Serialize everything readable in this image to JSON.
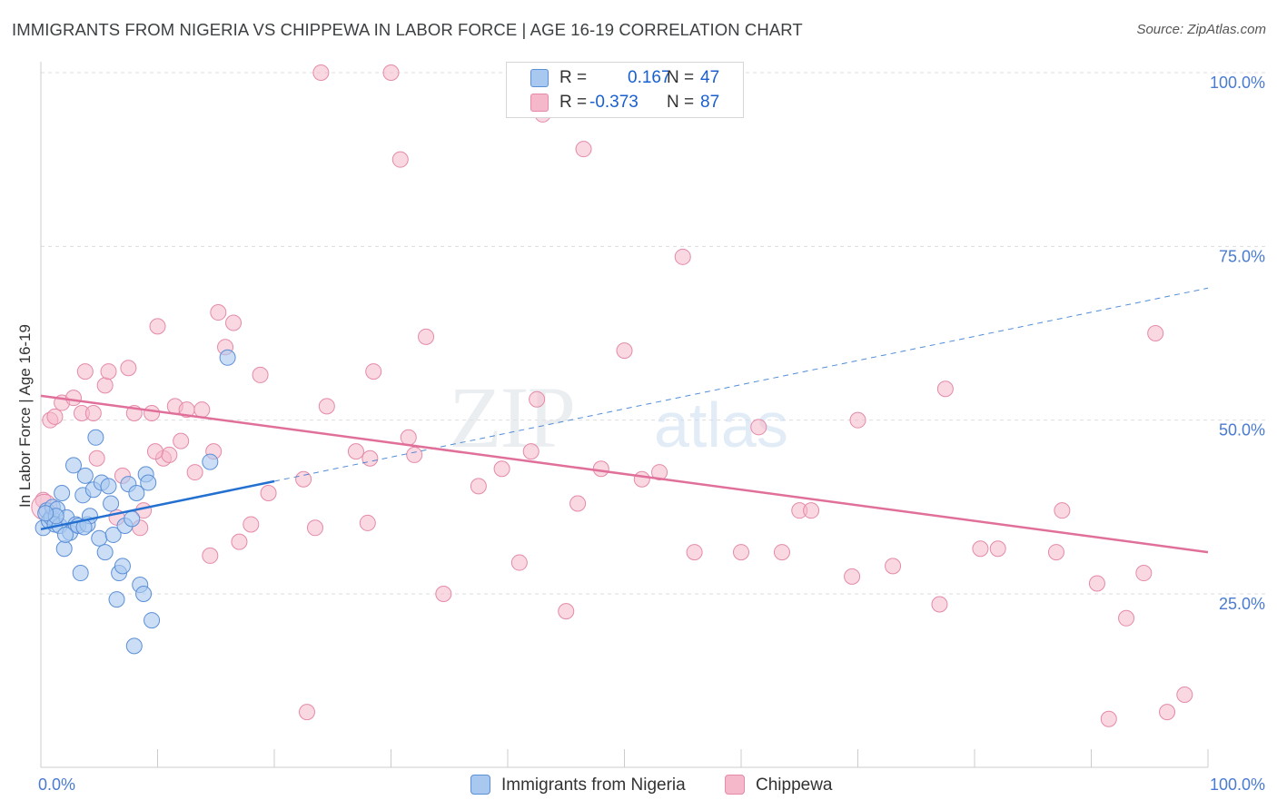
{
  "title": "IMMIGRANTS FROM NIGERIA VS CHIPPEWA IN LABOR FORCE | AGE 16-19 CORRELATION CHART",
  "source": "Source: ZipAtlas.com",
  "watermark": {
    "zip": "ZIP",
    "atlas": "atlas"
  },
  "colors": {
    "series1_fill": "#a8c8f0",
    "series1_stroke": "#5b8fd6",
    "series1_line": "#2470d0",
    "series2_fill": "#f5b8cb",
    "series2_stroke": "#e48aa8",
    "series2_line": "#e0709a",
    "axis_text": "#4a7bd0",
    "grid": "#dddddd"
  },
  "stats": {
    "r_label": "R =",
    "n_label": "N =",
    "rows": [
      {
        "r": "0.167",
        "n": "47"
      },
      {
        "r": "-0.373",
        "n": "87"
      }
    ]
  },
  "legend": [
    {
      "label": "Immigrants from Nigeria"
    },
    {
      "label": "Chippewa"
    }
  ],
  "chart_data": {
    "type": "scatter",
    "title": "IMMIGRANTS FROM NIGERIA VS CHIPPEWA IN LABOR FORCE | AGE 16-19 CORRELATION CHART",
    "xlabel": "",
    "ylabel": "In Labor Force | Age 16-19",
    "xlim": [
      0,
      100
    ],
    "ylim": [
      0,
      105
    ],
    "x_tick_labels": [
      {
        "value": 0,
        "label": "0.0%"
      },
      {
        "value": 100,
        "label": "100.0%"
      }
    ],
    "y_tick_labels": [
      {
        "value": 25,
        "label": "25.0%"
      },
      {
        "value": 50,
        "label": "50.0%"
      },
      {
        "value": 75,
        "label": "75.0%"
      },
      {
        "value": 100,
        "label": "100.0%"
      }
    ],
    "grid": true,
    "legend_position": "bottom",
    "series": [
      {
        "name": "Immigrants from Nigeria",
        "trend": {
          "x0": 0,
          "y0": 34.3,
          "x1": 20,
          "y1": 41.2,
          "dashed_to_x": 100,
          "dashed_to_y": 69.0
        },
        "points": [
          [
            0.2,
            34.5
          ],
          [
            0.5,
            37.0
          ],
          [
            0.7,
            35.5
          ],
          [
            0.9,
            36.0
          ],
          [
            1.0,
            37.5
          ],
          [
            1.2,
            35.0
          ],
          [
            1.4,
            37.2
          ],
          [
            1.6,
            34.8
          ],
          [
            1.8,
            39.5
          ],
          [
            2.0,
            31.5
          ],
          [
            2.2,
            36.0
          ],
          [
            2.5,
            33.8
          ],
          [
            2.8,
            43.5
          ],
          [
            3.0,
            35.0
          ],
          [
            3.2,
            34.8
          ],
          [
            3.4,
            28.0
          ],
          [
            3.6,
            39.2
          ],
          [
            3.8,
            42.0
          ],
          [
            4.0,
            35.0
          ],
          [
            4.2,
            36.2
          ],
          [
            4.5,
            40.0
          ],
          [
            4.7,
            47.5
          ],
          [
            5.0,
            33.0
          ],
          [
            5.2,
            41.0
          ],
          [
            5.5,
            31.0
          ],
          [
            5.8,
            40.5
          ],
          [
            6.0,
            38.0
          ],
          [
            6.2,
            33.5
          ],
          [
            6.5,
            24.2
          ],
          [
            6.7,
            28.0
          ],
          [
            7.0,
            29.0
          ],
          [
            7.2,
            34.8
          ],
          [
            7.5,
            40.8
          ],
          [
            7.8,
            35.8
          ],
          [
            8.0,
            17.5
          ],
          [
            8.2,
            39.5
          ],
          [
            8.5,
            26.3
          ],
          [
            8.8,
            25.0
          ],
          [
            9.0,
            42.2
          ],
          [
            9.2,
            41.0
          ],
          [
            9.5,
            21.2
          ],
          [
            14.5,
            44.0
          ],
          [
            16.0,
            59.0
          ],
          [
            1.3,
            36.2
          ],
          [
            2.1,
            33.5
          ],
          [
            3.7,
            34.6
          ],
          [
            0.4,
            36.6
          ]
        ]
      },
      {
        "name": "Chippewa",
        "trend": {
          "x0": 0,
          "y0": 53.5,
          "x1": 100,
          "y1": 31.0
        },
        "points": [
          [
            0.2,
            38.5
          ],
          [
            0.8,
            50.0
          ],
          [
            1.2,
            50.5
          ],
          [
            1.8,
            52.5
          ],
          [
            2.8,
            53.2
          ],
          [
            3.5,
            51.0
          ],
          [
            3.8,
            57.0
          ],
          [
            4.5,
            51.0
          ],
          [
            4.8,
            44.5
          ],
          [
            5.5,
            55.0
          ],
          [
            5.8,
            57.0
          ],
          [
            6.5,
            36.0
          ],
          [
            7.0,
            42.0
          ],
          [
            7.5,
            57.5
          ],
          [
            8.0,
            51.0
          ],
          [
            8.5,
            34.5
          ],
          [
            8.8,
            37.0
          ],
          [
            9.5,
            51.0
          ],
          [
            10.0,
            63.5
          ],
          [
            10.5,
            44.5
          ],
          [
            11.0,
            45.0
          ],
          [
            11.5,
            52.0
          ],
          [
            12.0,
            47.0
          ],
          [
            12.5,
            51.5
          ],
          [
            13.2,
            42.5
          ],
          [
            13.8,
            51.5
          ],
          [
            14.5,
            30.5
          ],
          [
            14.8,
            45.5
          ],
          [
            15.2,
            65.5
          ],
          [
            15.8,
            60.5
          ],
          [
            16.5,
            64.0
          ],
          [
            17.0,
            32.5
          ],
          [
            18.0,
            35.0
          ],
          [
            18.8,
            56.5
          ],
          [
            19.5,
            39.5
          ],
          [
            22.5,
            41.5
          ],
          [
            22.8,
            8.0
          ],
          [
            23.5,
            34.5
          ],
          [
            24.0,
            100.0
          ],
          [
            24.5,
            52.0
          ],
          [
            27.0,
            45.5
          ],
          [
            28.0,
            35.2
          ],
          [
            28.2,
            44.5
          ],
          [
            28.5,
            57.0
          ],
          [
            30.0,
            100.0
          ],
          [
            30.8,
            87.5
          ],
          [
            31.5,
            47.5
          ],
          [
            32.0,
            45.0
          ],
          [
            33.0,
            62.0
          ],
          [
            34.5,
            25.0
          ],
          [
            37.5,
            40.5
          ],
          [
            39.5,
            43.0
          ],
          [
            41.0,
            29.5
          ],
          [
            42.0,
            45.5
          ],
          [
            42.5,
            53.0
          ],
          [
            43.0,
            94.0
          ],
          [
            45.0,
            22.5
          ],
          [
            46.0,
            38.0
          ],
          [
            46.5,
            89.0
          ],
          [
            48.0,
            43.0
          ],
          [
            50.0,
            60.0
          ],
          [
            51.5,
            41.5
          ],
          [
            53.0,
            42.5
          ],
          [
            55.0,
            73.5
          ],
          [
            56.0,
            31.0
          ],
          [
            60.0,
            31.0
          ],
          [
            61.5,
            49.0
          ],
          [
            63.5,
            31.0
          ],
          [
            65.0,
            37.0
          ],
          [
            66.0,
            37.0
          ],
          [
            69.5,
            27.5
          ],
          [
            70.0,
            50.0
          ],
          [
            73.0,
            29.0
          ],
          [
            77.0,
            23.5
          ],
          [
            77.5,
            54.5
          ],
          [
            80.5,
            31.5
          ],
          [
            82.0,
            31.5
          ],
          [
            87.0,
            31.0
          ],
          [
            87.5,
            37.0
          ],
          [
            90.5,
            26.5
          ],
          [
            91.5,
            7.0
          ],
          [
            93.0,
            21.5
          ],
          [
            94.5,
            28.0
          ],
          [
            95.5,
            62.5
          ],
          [
            96.5,
            8.0
          ],
          [
            98.0,
            10.5
          ],
          [
            9.8,
            45.5
          ]
        ]
      }
    ]
  }
}
